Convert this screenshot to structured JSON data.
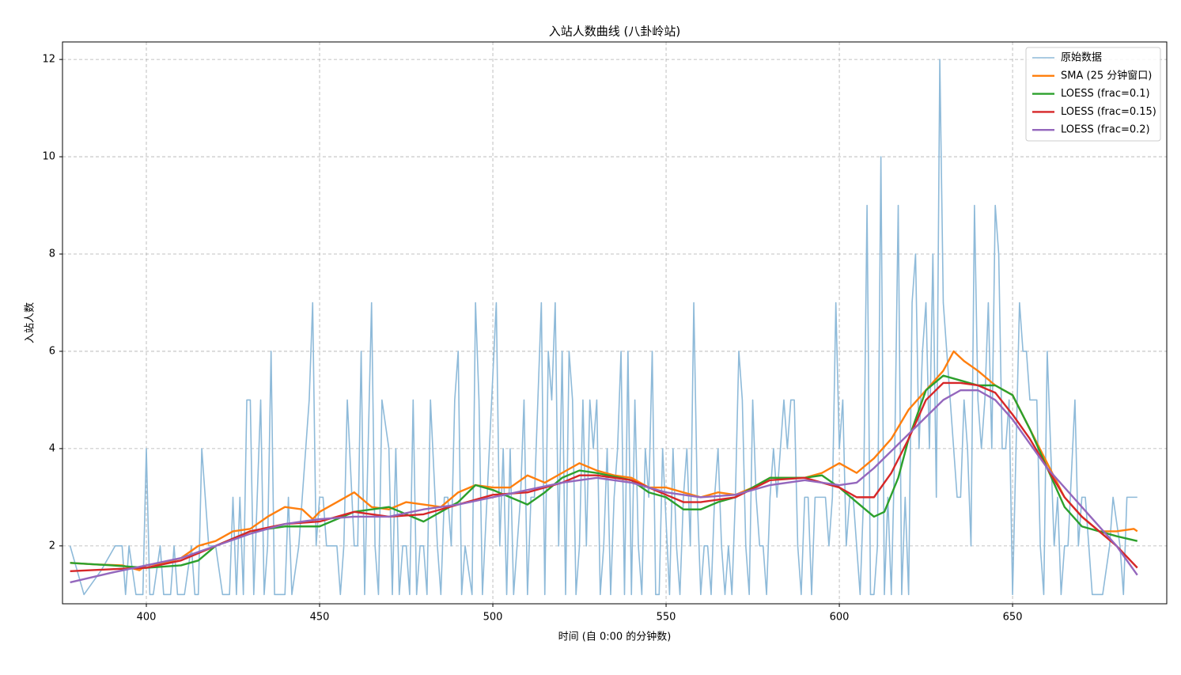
{
  "chart_data": {
    "type": "line",
    "title": "入站人数曲线 (八卦岭站)",
    "x_label": "时间 (自 0:00 的分钟数)",
    "y_label": "入站人数",
    "xlim": [
      375.8,
      694.5
    ],
    "ylim": [
      0.81,
      12.36
    ],
    "xticks": [
      400,
      450,
      500,
      550,
      600,
      650
    ],
    "yticks": [
      2,
      4,
      6,
      8,
      10,
      12
    ],
    "grid": true,
    "legend": "upper right",
    "series": [
      {
        "name": "原始数据",
        "color": "#8ebad9",
        "x": [
          378,
          382,
          387,
          391,
          393,
          394,
          395,
          396,
          397,
          399,
          400,
          401,
          402,
          404,
          405,
          407,
          408,
          409,
          411,
          413,
          414,
          415,
          416,
          418,
          420,
          422,
          424,
          425,
          426,
          427,
          428,
          429,
          430,
          431,
          433,
          434,
          435,
          436,
          437,
          438,
          440,
          441,
          442,
          444,
          445,
          447,
          448,
          449,
          450,
          451,
          452,
          453,
          455,
          456,
          457,
          458,
          460,
          461,
          462,
          463,
          465,
          466,
          467,
          468,
          470,
          471,
          472,
          473,
          474,
          475,
          476,
          477,
          478,
          479,
          480,
          481,
          482,
          484,
          485,
          486,
          487,
          488,
          489,
          490,
          491,
          492,
          494,
          495,
          496,
          497,
          499,
          501,
          502,
          503,
          504,
          505,
          506,
          507,
          508,
          509,
          510,
          511,
          512,
          514,
          515,
          516,
          517,
          518,
          519,
          520,
          521,
          522,
          523,
          524,
          525,
          526,
          527,
          528,
          529,
          530,
          531,
          532,
          533,
          534,
          535,
          536,
          537,
          538,
          539,
          540,
          541,
          542,
          543,
          544,
          545,
          546,
          547,
          548,
          549,
          551,
          552,
          553,
          554,
          555,
          556,
          557,
          558,
          559,
          560,
          561,
          562,
          563,
          564,
          565,
          566,
          567,
          568,
          569,
          570,
          571,
          572,
          573,
          574,
          575,
          576,
          577,
          578,
          579,
          580,
          581,
          582,
          583,
          584,
          585,
          586,
          587,
          588,
          589,
          590,
          591,
          592,
          593,
          594,
          595,
          596,
          597,
          598,
          599,
          600,
          601,
          602,
          603,
          604,
          605,
          606,
          607,
          608,
          609,
          610,
          611,
          612,
          613,
          614,
          615,
          616,
          617,
          618,
          619,
          620,
          621,
          622,
          623,
          624,
          625,
          626,
          627,
          628,
          629,
          630,
          631,
          632,
          633,
          634,
          635,
          636,
          637,
          638,
          639,
          640,
          641,
          642,
          643,
          644,
          645,
          646,
          647,
          648,
          649,
          650,
          651,
          652,
          653,
          654,
          655,
          656,
          657,
          658,
          659,
          660,
          661,
          662,
          663,
          664,
          665,
          666,
          668,
          669,
          670,
          671,
          672,
          673,
          674,
          676,
          678,
          679,
          681,
          682,
          683,
          686
        ],
        "values": [
          2,
          1,
          1.5,
          2,
          2,
          1,
          2,
          1.5,
          1,
          1,
          4,
          1,
          1,
          2,
          1,
          1,
          2,
          1,
          1,
          2,
          1,
          1,
          4,
          2,
          2,
          1,
          1,
          3,
          1,
          3,
          1,
          5,
          5,
          1,
          5,
          1,
          2,
          6,
          1,
          1,
          1,
          3,
          1,
          2,
          3,
          5,
          7,
          2,
          3,
          3,
          2,
          2,
          2,
          1,
          2,
          5,
          2,
          2,
          6,
          1,
          7,
          2,
          1,
          5,
          4,
          1,
          4,
          1,
          2,
          2,
          1,
          5,
          1,
          2,
          2,
          1,
          5,
          2,
          1,
          3,
          3,
          2,
          5,
          6,
          1,
          2,
          1,
          7,
          5,
          1,
          4,
          7,
          2,
          4,
          1,
          4,
          1,
          2,
          3,
          5,
          1,
          3,
          3,
          7,
          1,
          6,
          5,
          7,
          2,
          6,
          1,
          6,
          5,
          1,
          2,
          5,
          2,
          5,
          4,
          5,
          1,
          2,
          4,
          1,
          3,
          4,
          6,
          1,
          6,
          1,
          5,
          2,
          1,
          4,
          3,
          6,
          1,
          1,
          4,
          1,
          4,
          2,
          1,
          3,
          4,
          2,
          7,
          3,
          1,
          2,
          2,
          1,
          3,
          4,
          2,
          1,
          2,
          1,
          3,
          6,
          5,
          2,
          1,
          5,
          3,
          2,
          2,
          1,
          3,
          4,
          3,
          4,
          5,
          4,
          5,
          5,
          2,
          1,
          3,
          3,
          1,
          3,
          3,
          3,
          3,
          2,
          3,
          7,
          4,
          5,
          2,
          3,
          3,
          2,
          1,
          3,
          9,
          1,
          1,
          2,
          10,
          1,
          3,
          1,
          4,
          9,
          1,
          3,
          1,
          7,
          8,
          4,
          6,
          7,
          4,
          8,
          3,
          12,
          7,
          6,
          5,
          4,
          3,
          3,
          5,
          4,
          2,
          9,
          5,
          4,
          5,
          7,
          4,
          9,
          8,
          4,
          4,
          5,
          1,
          4,
          7,
          6,
          6,
          5,
          5,
          5,
          2,
          1,
          6,
          4,
          2,
          3,
          1,
          2,
          2,
          5,
          2,
          3,
          3,
          2,
          1,
          1,
          1,
          2,
          3,
          2,
          1,
          3,
          3
        ]
      },
      {
        "name": "SMA (25 分钟窗口)",
        "color": "#ff7f0e",
        "x": [
          378,
          385,
          393,
          398,
          400,
          405,
          410,
          415,
          420,
          425,
          430,
          435,
          440,
          445,
          448,
          450,
          455,
          460,
          465,
          470,
          475,
          480,
          485,
          490,
          495,
          500,
          505,
          510,
          515,
          520,
          525,
          530,
          535,
          540,
          545,
          550,
          555,
          560,
          565,
          570,
          575,
          580,
          585,
          590,
          595,
          600,
          605,
          610,
          615,
          620,
          625,
          630,
          633,
          636,
          640,
          645,
          650,
          655,
          660,
          665,
          670,
          675,
          680,
          685,
          686
        ],
        "values": [
          1.65,
          1.62,
          1.6,
          1.5,
          1.6,
          1.65,
          1.75,
          2.0,
          2.1,
          2.3,
          2.35,
          2.6,
          2.8,
          2.75,
          2.55,
          2.7,
          2.9,
          3.1,
          2.8,
          2.75,
          2.9,
          2.85,
          2.8,
          3.1,
          3.25,
          3.2,
          3.2,
          3.45,
          3.3,
          3.5,
          3.7,
          3.55,
          3.45,
          3.4,
          3.2,
          3.2,
          3.1,
          3.0,
          3.1,
          3.05,
          3.2,
          3.4,
          3.4,
          3.4,
          3.5,
          3.7,
          3.5,
          3.8,
          4.2,
          4.8,
          5.2,
          5.6,
          6.0,
          5.8,
          5.6,
          5.3,
          5.1,
          4.4,
          3.7,
          3.0,
          2.6,
          2.3,
          2.3,
          2.35,
          2.3
        ]
      },
      {
        "name": "LOESS (frac=0.1)",
        "color": "#2ca02c",
        "x": [
          378,
          390,
          400,
          410,
          415,
          420,
          430,
          440,
          450,
          460,
          470,
          480,
          490,
          495,
          500,
          505,
          510,
          515,
          520,
          525,
          530,
          540,
          545,
          550,
          555,
          560,
          565,
          570,
          575,
          580,
          590,
          595,
          600,
          605,
          610,
          613,
          617,
          620,
          625,
          630,
          635,
          640,
          645,
          650,
          655,
          660,
          665,
          670,
          675,
          680,
          686
        ],
        "values": [
          1.65,
          1.6,
          1.55,
          1.6,
          1.7,
          2.0,
          2.3,
          2.4,
          2.4,
          2.7,
          2.8,
          2.5,
          2.9,
          3.25,
          3.15,
          3.0,
          2.85,
          3.1,
          3.4,
          3.55,
          3.5,
          3.35,
          3.1,
          3.0,
          2.75,
          2.75,
          2.9,
          3.0,
          3.2,
          3.4,
          3.4,
          3.45,
          3.2,
          2.9,
          2.6,
          2.7,
          3.4,
          4.2,
          5.2,
          5.5,
          5.4,
          5.3,
          5.3,
          5.1,
          4.4,
          3.6,
          2.8,
          2.4,
          2.3,
          2.2,
          2.1
        ]
      },
      {
        "name": "LOESS (frac=0.15)",
        "color": "#d62728",
        "x": [
          378,
          390,
          400,
          410,
          420,
          430,
          440,
          450,
          460,
          470,
          480,
          490,
          500,
          510,
          520,
          525,
          530,
          540,
          550,
          555,
          560,
          570,
          580,
          590,
          600,
          605,
          610,
          615,
          620,
          625,
          630,
          635,
          640,
          645,
          650,
          655,
          660,
          665,
          670,
          675,
          680,
          686
        ],
        "values": [
          1.48,
          1.52,
          1.55,
          1.7,
          2.0,
          2.3,
          2.45,
          2.5,
          2.7,
          2.6,
          2.65,
          2.85,
          3.05,
          3.1,
          3.3,
          3.45,
          3.45,
          3.35,
          3.05,
          2.9,
          2.9,
          3.0,
          3.35,
          3.4,
          3.2,
          3.0,
          3.0,
          3.5,
          4.2,
          5.0,
          5.35,
          5.35,
          5.3,
          5.15,
          4.7,
          4.2,
          3.6,
          3.0,
          2.6,
          2.3,
          2.0,
          1.55
        ]
      },
      {
        "name": "LOESS (frac=0.2)",
        "color": "#9467bd",
        "x": [
          378,
          390,
          400,
          410,
          420,
          430,
          440,
          450,
          460,
          470,
          480,
          490,
          500,
          510,
          520,
          530,
          540,
          550,
          560,
          570,
          580,
          590,
          600,
          605,
          610,
          620,
          630,
          635,
          640,
          645,
          650,
          655,
          660,
          670,
          680,
          686
        ],
        "values": [
          1.25,
          1.45,
          1.6,
          1.75,
          2.0,
          2.25,
          2.45,
          2.55,
          2.6,
          2.6,
          2.75,
          2.85,
          3.0,
          3.15,
          3.3,
          3.4,
          3.3,
          3.1,
          3.0,
          3.05,
          3.25,
          3.35,
          3.25,
          3.3,
          3.6,
          4.3,
          5.0,
          5.2,
          5.2,
          5.0,
          4.6,
          4.1,
          3.6,
          2.8,
          2.0,
          1.4
        ]
      }
    ]
  }
}
